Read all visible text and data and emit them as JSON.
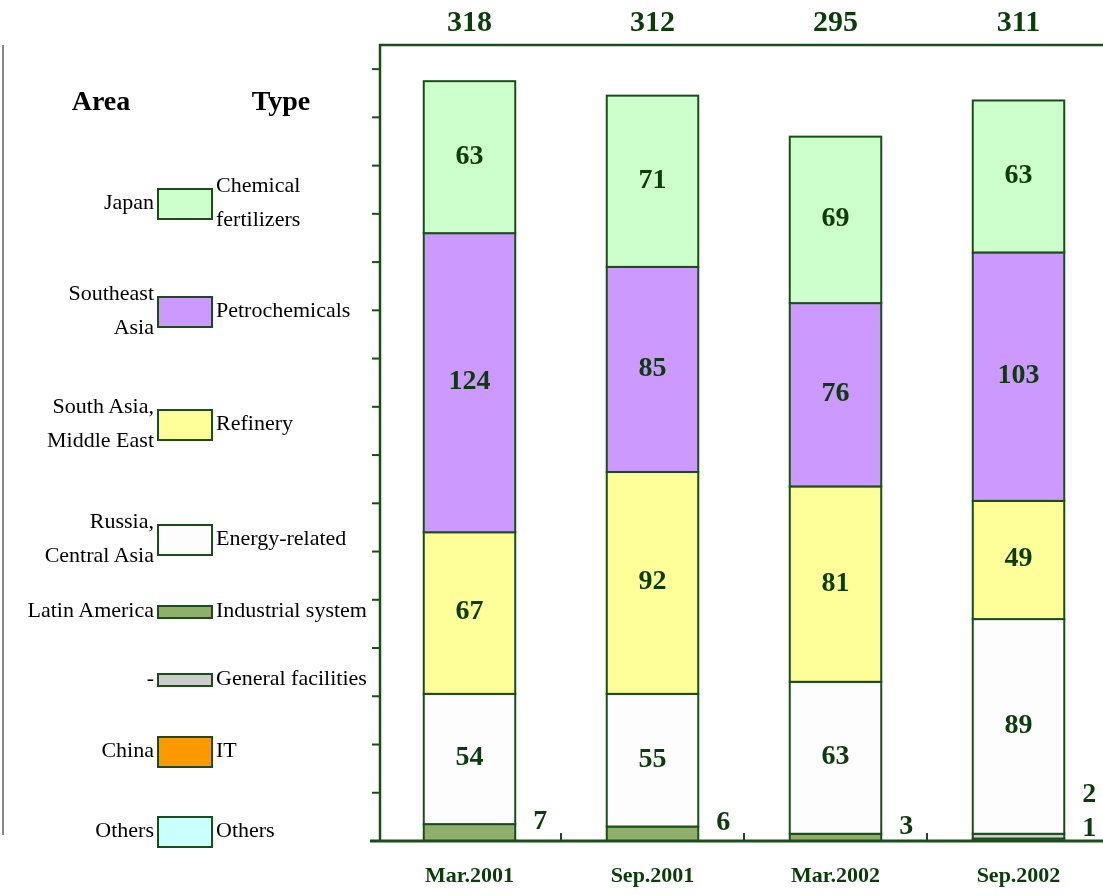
{
  "chart_data": {
    "type": "bar",
    "stacked": true,
    "categories": [
      "Mar.2001",
      "Sep.2001",
      "Mar.2002",
      "Sep.2002"
    ],
    "series": [
      {
        "name": "Industrial system",
        "color": "#8faf6a",
        "values": [
          7,
          6,
          3,
          1
        ],
        "value_labels": [
          "7",
          "6",
          "3",
          "1"
        ]
      },
      {
        "name": "General facilities",
        "color": "#cccccc",
        "values": [
          null,
          null,
          null,
          2
        ],
        "value_labels": [
          null,
          null,
          null,
          "2"
        ]
      },
      {
        "name": "Energy-related",
        "color": "#fdfdfd",
        "values": [
          54,
          55,
          63,
          89
        ],
        "value_labels": [
          "54",
          "55",
          "63",
          "89"
        ]
      },
      {
        "name": "Refinery",
        "color": "#ffff99",
        "values": [
          67,
          92,
          81,
          49
        ],
        "value_labels": [
          "67",
          "92",
          "81",
          "49"
        ]
      },
      {
        "name": "Petrochemicals",
        "color": "#cc99ff",
        "values": [
          124,
          85,
          76,
          103
        ],
        "value_labels": [
          "124",
          "85",
          "76",
          "103"
        ]
      },
      {
        "name": "Chemical\nfertilizers",
        "color": "#ccffcc",
        "values": [
          63,
          71,
          69,
          63
        ],
        "value_labels": [
          "63",
          "71",
          "69",
          "63"
        ]
      },
      {
        "name": "IT",
        "color": "#ff9900",
        "values": [
          null,
          null,
          null,
          null
        ]
      },
      {
        "name": "Others",
        "color": "#ccffff",
        "values": [
          null,
          null,
          null,
          null
        ]
      }
    ],
    "ylim": [
      0,
      330
    ],
    "yticks": [
      {
        "value": 0,
        "label": null
      },
      {
        "value": 20,
        "label": null
      },
      {
        "value": 40,
        "label": null
      },
      {
        "value": 60,
        "label": null
      },
      {
        "value": 80,
        "label": null
      },
      {
        "value": 100,
        "label": null
      },
      {
        "value": 120,
        "label": null
      },
      {
        "value": 140,
        "label": null
      },
      {
        "value": 160,
        "label": null
      },
      {
        "value": 180,
        "label": null
      },
      {
        "value": 200,
        "label": null
      },
      {
        "value": 220,
        "label": null
      },
      {
        "value": 240,
        "label": null
      },
      {
        "value": 260,
        "label": null
      },
      {
        "value": 280,
        "label": null
      },
      {
        "value": 300,
        "label": null
      },
      {
        "value": 320,
        "label": null
      }
    ],
    "tick_labels": "x",
    "grid": false,
    "legend": "left",
    "legend_title": "Type",
    "annotations": [
      "Area",
      "Latin America",
      "-",
      "Russia,\nCentral Asia",
      "South Asia,\nMiddle East",
      "Southeast\nAsia",
      "Japan",
      "China",
      "Others",
      "318",
      "312",
      "295",
      "311"
    ]
  }
}
